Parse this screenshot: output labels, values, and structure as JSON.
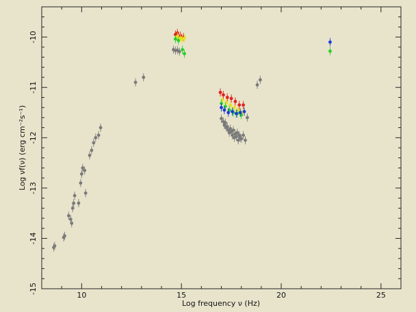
{
  "chart_data": {
    "type": "scatter",
    "title": "",
    "xlabel": "Log frequency ν (Hz)",
    "ylabel": "Log νf(ν) (erg cm⁻²s⁻¹)",
    "xlim": [
      8,
      26
    ],
    "ylim": [
      -15,
      -9.4
    ],
    "x_ticks": [
      10,
      15,
      20,
      25
    ],
    "y_ticks": [
      -15,
      -14,
      -13,
      -12,
      -11,
      -10
    ],
    "grid": false,
    "legend": "none",
    "series": [
      {
        "color": "#7a7a7a",
        "points": [
          [
            8.6,
            -14.18
          ],
          [
            8.65,
            -14.15
          ],
          [
            9.1,
            -13.98
          ],
          [
            9.15,
            -13.95
          ],
          [
            9.35,
            -13.55
          ],
          [
            9.45,
            -13.62
          ],
          [
            9.5,
            -13.7
          ],
          [
            9.55,
            -13.4
          ],
          [
            9.6,
            -13.3
          ],
          [
            9.65,
            -13.15
          ],
          [
            9.85,
            -13.3
          ],
          [
            9.95,
            -12.9
          ],
          [
            10.0,
            -12.72
          ],
          [
            10.05,
            -12.6
          ],
          [
            10.15,
            -12.65
          ],
          [
            10.2,
            -13.1
          ],
          [
            10.4,
            -12.35
          ],
          [
            10.5,
            -12.25
          ],
          [
            10.6,
            -12.1
          ],
          [
            10.7,
            -12.0
          ],
          [
            10.85,
            -11.95
          ],
          [
            10.95,
            -11.8
          ],
          [
            12.7,
            -10.9
          ],
          [
            13.1,
            -10.8
          ],
          [
            14.6,
            -10.25
          ],
          [
            14.7,
            -10.27
          ],
          [
            14.8,
            -10.26
          ],
          [
            14.9,
            -10.29
          ],
          [
            17.0,
            -11.62
          ],
          [
            17.1,
            -11.68
          ],
          [
            17.15,
            -11.75
          ],
          [
            17.2,
            -11.7
          ],
          [
            17.25,
            -11.8
          ],
          [
            17.3,
            -11.78
          ],
          [
            17.35,
            -11.85
          ],
          [
            17.4,
            -11.9
          ],
          [
            17.45,
            -11.82
          ],
          [
            17.5,
            -11.88
          ],
          [
            17.55,
            -11.95
          ],
          [
            17.6,
            -11.85
          ],
          [
            17.65,
            -12.0
          ],
          [
            17.7,
            -11.92
          ],
          [
            17.75,
            -11.98
          ],
          [
            17.8,
            -11.9
          ],
          [
            17.85,
            -12.05
          ],
          [
            17.9,
            -11.95
          ],
          [
            17.95,
            -12.0
          ],
          [
            18.0,
            -12.02
          ],
          [
            18.1,
            -11.95
          ],
          [
            18.2,
            -12.05
          ],
          [
            18.3,
            -11.6
          ],
          [
            18.8,
            -10.95
          ],
          [
            18.95,
            -10.85
          ]
        ]
      },
      {
        "color": "#e02020",
        "points": [
          [
            14.7,
            -9.95
          ],
          [
            14.8,
            -9.92
          ],
          [
            14.95,
            -9.97
          ],
          [
            15.1,
            -10.0
          ],
          [
            16.95,
            -11.1
          ],
          [
            17.1,
            -11.15
          ],
          [
            17.3,
            -11.2
          ],
          [
            17.5,
            -11.22
          ],
          [
            17.7,
            -11.28
          ],
          [
            17.9,
            -11.35
          ],
          [
            18.1,
            -11.35
          ]
        ]
      },
      {
        "color": "#e8e020",
        "points": [
          [
            14.8,
            -9.99
          ],
          [
            14.95,
            -10.02
          ],
          [
            15.05,
            -10.05
          ],
          [
            15.15,
            -10.02
          ],
          [
            17.05,
            -11.25
          ],
          [
            17.25,
            -11.3
          ],
          [
            17.45,
            -11.35
          ],
          [
            17.65,
            -11.4
          ],
          [
            17.85,
            -11.45
          ],
          [
            18.05,
            -11.5
          ]
        ]
      },
      {
        "color": "#28d028",
        "points": [
          [
            14.7,
            -10.04
          ],
          [
            14.85,
            -10.07
          ],
          [
            15.05,
            -10.25
          ],
          [
            15.15,
            -10.33
          ],
          [
            17.0,
            -11.32
          ],
          [
            17.2,
            -11.38
          ],
          [
            17.4,
            -11.45
          ],
          [
            17.6,
            -11.5
          ],
          [
            17.8,
            -11.52
          ],
          [
            18.0,
            -11.55
          ],
          [
            22.45,
            -10.28
          ]
        ]
      },
      {
        "color": "#1a3cd8",
        "points": [
          [
            17.0,
            -11.4
          ],
          [
            17.15,
            -11.45
          ],
          [
            17.35,
            -11.5
          ],
          [
            17.55,
            -11.48
          ],
          [
            17.75,
            -11.52
          ],
          [
            17.95,
            -11.5
          ],
          [
            18.15,
            -11.48
          ],
          [
            22.45,
            -10.1
          ]
        ]
      }
    ]
  }
}
